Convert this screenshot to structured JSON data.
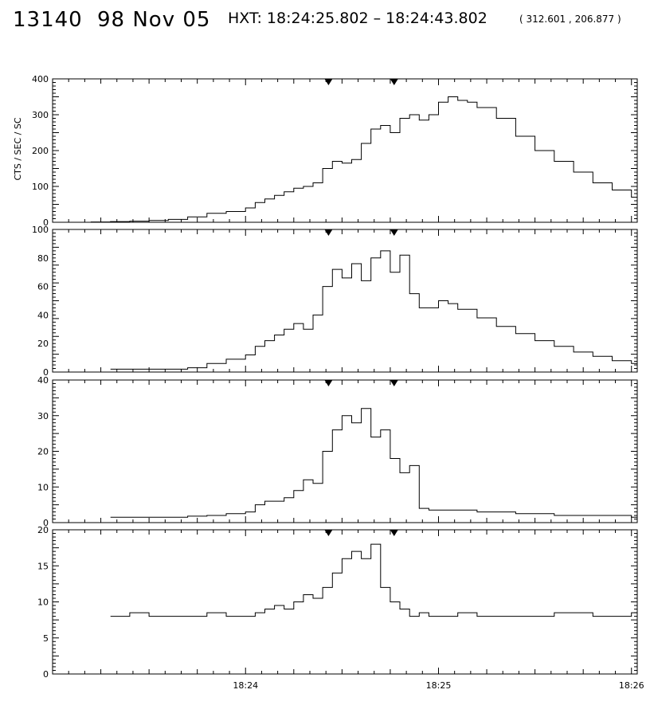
{
  "header": {
    "event_number": "13140",
    "date": "98 Nov 05",
    "range": "HXT: 18:24:25.802 – 18:24:43.802",
    "coords": "( 312.601 , 206.877 )"
  },
  "chart_data": {
    "type": "line",
    "step": true,
    "ylabel": "CTS / SEC / SC",
    "x_tick_labels": [
      "18:24",
      "18:25",
      "18:26"
    ],
    "x_ticks": [
      24,
      25,
      26
    ],
    "xlim": [
      23.0,
      26.03
    ],
    "interval_markers": [
      24.43,
      24.77
    ],
    "panels": [
      {
        "ylim": [
          0,
          400
        ],
        "y_ticks": [
          0,
          100,
          200,
          300,
          400
        ],
        "x": [
          23.0,
          23.1,
          23.2,
          23.3,
          23.4,
          23.5,
          23.6,
          23.7,
          23.8,
          23.9,
          24.0,
          24.05,
          24.1,
          24.15,
          24.2,
          24.25,
          24.3,
          24.35,
          24.4,
          24.45,
          24.5,
          24.55,
          24.6,
          24.65,
          24.7,
          24.75,
          24.8,
          24.85,
          24.9,
          24.95,
          25.0,
          25.05,
          25.1,
          25.15,
          25.2,
          25.3,
          25.4,
          25.5,
          25.6,
          25.7,
          25.8,
          25.9,
          26.0,
          26.03
        ],
        "y": [
          0,
          0,
          1,
          2,
          3,
          5,
          8,
          15,
          25,
          30,
          40,
          55,
          65,
          75,
          85,
          95,
          100,
          110,
          150,
          170,
          165,
          175,
          220,
          260,
          270,
          250,
          290,
          300,
          285,
          300,
          335,
          350,
          340,
          335,
          320,
          290,
          240,
          200,
          170,
          140,
          110,
          90,
          70,
          60
        ]
      },
      {
        "ylim": [
          0,
          100
        ],
        "y_ticks": [
          0,
          20,
          40,
          60,
          80,
          100
        ],
        "x": [
          23.3,
          23.4,
          23.5,
          23.6,
          23.7,
          23.8,
          23.9,
          24.0,
          24.05,
          24.1,
          24.15,
          24.2,
          24.25,
          24.3,
          24.35,
          24.4,
          24.45,
          24.5,
          24.55,
          24.6,
          24.65,
          24.7,
          24.75,
          24.8,
          24.85,
          24.9,
          24.95,
          25.0,
          25.05,
          25.1,
          25.2,
          25.3,
          25.4,
          25.5,
          25.6,
          25.7,
          25.8,
          25.9,
          26.0,
          26.03
        ],
        "y": [
          2,
          2,
          2,
          2,
          3,
          6,
          9,
          12,
          18,
          22,
          26,
          30,
          34,
          30,
          40,
          60,
          72,
          66,
          76,
          64,
          80,
          85,
          70,
          82,
          55,
          45,
          45,
          50,
          48,
          44,
          38,
          32,
          27,
          22,
          18,
          14,
          11,
          8,
          6,
          4
        ]
      },
      {
        "ylim": [
          0,
          40
        ],
        "y_ticks": [
          0,
          10,
          20,
          30,
          40
        ],
        "x": [
          23.3,
          23.4,
          23.5,
          23.6,
          23.7,
          23.8,
          23.9,
          24.0,
          24.05,
          24.1,
          24.15,
          24.2,
          24.25,
          24.3,
          24.35,
          24.4,
          24.45,
          24.5,
          24.55,
          24.6,
          24.65,
          24.7,
          24.75,
          24.8,
          24.85,
          24.9,
          24.95,
          25.0,
          25.1,
          25.2,
          25.4,
          25.6,
          25.8,
          26.0,
          26.03
        ],
        "y": [
          1.5,
          1.5,
          1.5,
          1.5,
          1.8,
          2,
          2.5,
          3,
          5,
          6,
          6,
          7,
          9,
          12,
          11,
          20,
          26,
          30,
          28,
          32,
          24,
          26,
          18,
          14,
          16,
          4,
          3.5,
          3.5,
          3.5,
          3,
          2.5,
          2,
          2,
          1.5,
          1.5
        ]
      },
      {
        "ylim": [
          0,
          20
        ],
        "y_ticks": [
          0,
          5,
          10,
          15,
          20
        ],
        "x": [
          23.3,
          23.4,
          23.5,
          23.6,
          23.7,
          23.8,
          23.9,
          24.0,
          24.05,
          24.1,
          24.15,
          24.2,
          24.25,
          24.3,
          24.35,
          24.4,
          24.45,
          24.5,
          24.55,
          24.6,
          24.65,
          24.7,
          24.75,
          24.8,
          24.85,
          24.9,
          24.95,
          25.0,
          25.1,
          25.2,
          25.4,
          25.6,
          25.8,
          26.0,
          26.03
        ],
        "y": [
          8,
          8.5,
          8,
          8,
          8,
          8.5,
          8,
          8,
          8.5,
          9,
          9.5,
          9,
          10,
          11,
          10.5,
          12,
          14,
          16,
          17,
          16,
          18,
          12,
          10,
          9,
          8,
          8.5,
          8,
          8,
          8.5,
          8,
          8,
          8.5,
          8,
          8.5,
          8
        ]
      }
    ]
  }
}
